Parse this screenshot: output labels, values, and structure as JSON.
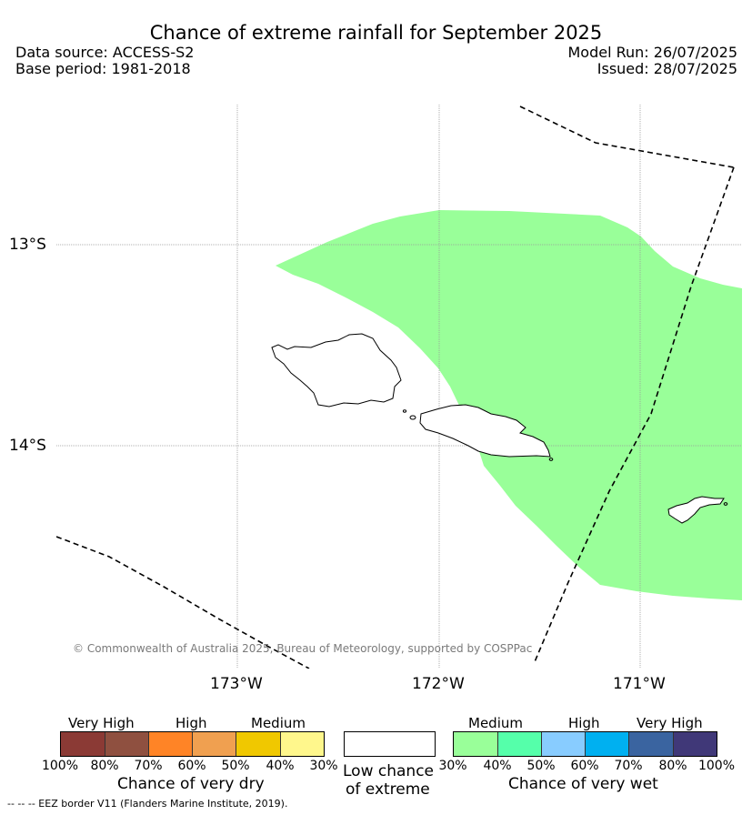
{
  "header": {
    "title": "Chance of extreme rainfall for September 2025",
    "data_source": "Data source: ACCESS-S2",
    "base_period": "Base period: 1981-2018",
    "model_run": "Model Run: 26/07/2025",
    "issued": "Issued: 28/07/2025"
  },
  "map": {
    "lat_labels": [
      "13°S",
      "14°S"
    ],
    "lon_labels": [
      "173°W",
      "172°W",
      "171°W"
    ],
    "credit": "© Commonwealth of Australia 2025, Bureau of Meteorology, supported by COSPPac",
    "colors": {
      "medium_wet": "#99ff99",
      "land_outline": "#000000",
      "eez": "#000000"
    }
  },
  "legend": {
    "dry": {
      "title": "Chance of very dry",
      "categories": [
        "Very High",
        "High",
        "Medium"
      ],
      "ticks": [
        "100%",
        "80%",
        "70%",
        "60%",
        "50%",
        "40%",
        "30%"
      ],
      "colors": [
        "#8b3a35",
        "#8f5040",
        "#ff8426",
        "#f0a050",
        "#f0c800",
        "#fff78c"
      ]
    },
    "low": {
      "title_line1": "Low chance",
      "title_line2": "of extreme",
      "color": "#ffffff"
    },
    "wet": {
      "title": "Chance of very wet",
      "categories": [
        "Medium",
        "High",
        "Very High"
      ],
      "ticks": [
        "30%",
        "40%",
        "50%",
        "60%",
        "70%",
        "80%",
        "100%"
      ],
      "colors": [
        "#99ff99",
        "#55ffaa",
        "#88ccff",
        "#00b0f0",
        "#3a64a0",
        "#403878"
      ]
    },
    "eez_note": "--  --  -- EEZ border V11 (Flanders Marine Institute, 2019)."
  }
}
